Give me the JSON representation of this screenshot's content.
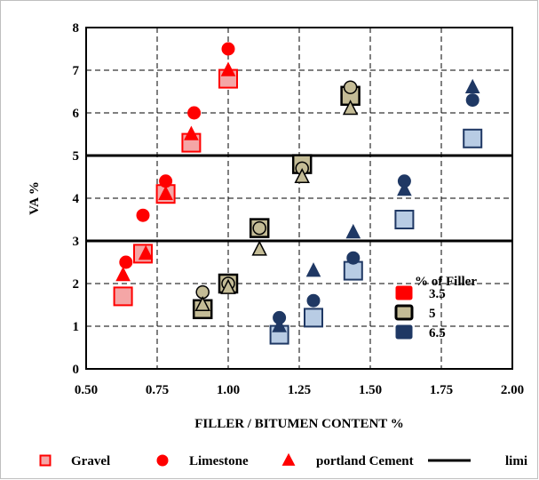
{
  "chart_data": {
    "type": "scatter",
    "xlabel": "FILLER / BITUMEN CONTENT %",
    "ylabel": "VA %",
    "xlim": [
      0.5,
      2.0
    ],
    "ylim": [
      0,
      8
    ],
    "x_ticks": [
      "0.50",
      "0.75",
      "1.00",
      "1.25",
      "1.50",
      "1.75",
      "2.00"
    ],
    "y_ticks": [
      "0",
      "1",
      "2",
      "3",
      "4",
      "5",
      "6",
      "7",
      "8"
    ],
    "grid": "dashed",
    "limits": [
      3,
      5
    ],
    "filler_colors": {
      "3.5": "#ff0000",
      "5": "#c4bc96",
      "6.5": "#1f3864"
    },
    "series": [
      {
        "name": "Gravel",
        "marker": "square",
        "points": [
          {
            "x": 0.63,
            "y": 1.7,
            "filler": "3.5"
          },
          {
            "x": 0.7,
            "y": 2.7,
            "filler": "3.5"
          },
          {
            "x": 0.78,
            "y": 4.1,
            "filler": "3.5"
          },
          {
            "x": 0.87,
            "y": 5.3,
            "filler": "3.5"
          },
          {
            "x": 1.0,
            "y": 6.8,
            "filler": "3.5"
          },
          {
            "x": 0.91,
            "y": 1.4,
            "filler": "5"
          },
          {
            "x": 1.0,
            "y": 2.0,
            "filler": "5"
          },
          {
            "x": 1.11,
            "y": 3.3,
            "filler": "5"
          },
          {
            "x": 1.26,
            "y": 4.8,
            "filler": "5"
          },
          {
            "x": 1.43,
            "y": 6.4,
            "filler": "5"
          },
          {
            "x": 1.18,
            "y": 0.8,
            "filler": "6.5"
          },
          {
            "x": 1.3,
            "y": 1.2,
            "filler": "6.5"
          },
          {
            "x": 1.44,
            "y": 2.3,
            "filler": "6.5"
          },
          {
            "x": 1.62,
            "y": 3.5,
            "filler": "6.5"
          },
          {
            "x": 1.86,
            "y": 5.4,
            "filler": "6.5"
          }
        ]
      },
      {
        "name": "Limestone",
        "marker": "circle",
        "points": [
          {
            "x": 0.64,
            "y": 2.5,
            "filler": "3.5"
          },
          {
            "x": 0.7,
            "y": 3.6,
            "filler": "3.5"
          },
          {
            "x": 0.78,
            "y": 4.4,
            "filler": "3.5"
          },
          {
            "x": 0.88,
            "y": 6.0,
            "filler": "3.5"
          },
          {
            "x": 1.0,
            "y": 7.5,
            "filler": "3.5"
          },
          {
            "x": 0.91,
            "y": 1.8,
            "filler": "5"
          },
          {
            "x": 1.0,
            "y": 2.0,
            "filler": "5"
          },
          {
            "x": 1.11,
            "y": 3.3,
            "filler": "5"
          },
          {
            "x": 1.26,
            "y": 4.7,
            "filler": "5"
          },
          {
            "x": 1.43,
            "y": 6.6,
            "filler": "5"
          },
          {
            "x": 1.18,
            "y": 1.2,
            "filler": "6.5"
          },
          {
            "x": 1.3,
            "y": 1.6,
            "filler": "6.5"
          },
          {
            "x": 1.44,
            "y": 2.6,
            "filler": "6.5"
          },
          {
            "x": 1.62,
            "y": 4.4,
            "filler": "6.5"
          },
          {
            "x": 1.86,
            "y": 6.3,
            "filler": "6.5"
          }
        ]
      },
      {
        "name": "portland Cement",
        "marker": "triangle",
        "points": [
          {
            "x": 0.63,
            "y": 2.2,
            "filler": "3.5"
          },
          {
            "x": 0.71,
            "y": 2.7,
            "filler": "3.5"
          },
          {
            "x": 0.78,
            "y": 4.1,
            "filler": "3.5"
          },
          {
            "x": 0.87,
            "y": 5.5,
            "filler": "3.5"
          },
          {
            "x": 1.0,
            "y": 7.0,
            "filler": "3.5"
          },
          {
            "x": 0.91,
            "y": 1.5,
            "filler": "5"
          },
          {
            "x": 1.0,
            "y": 1.9,
            "filler": "5"
          },
          {
            "x": 1.11,
            "y": 2.8,
            "filler": "5"
          },
          {
            "x": 1.26,
            "y": 4.5,
            "filler": "5"
          },
          {
            "x": 1.43,
            "y": 6.1,
            "filler": "5"
          },
          {
            "x": 1.18,
            "y": 1.0,
            "filler": "6.5"
          },
          {
            "x": 1.3,
            "y": 2.3,
            "filler": "6.5"
          },
          {
            "x": 1.44,
            "y": 3.2,
            "filler": "6.5"
          },
          {
            "x": 1.62,
            "y": 4.2,
            "filler": "6.5"
          },
          {
            "x": 1.86,
            "y": 6.6,
            "filler": "6.5"
          }
        ]
      }
    ],
    "inner_legend": {
      "title": "% of Filler",
      "position": "lower-right",
      "entries": [
        {
          "label": "3.5",
          "color": "#ff0000"
        },
        {
          "label": "5",
          "color": "#c4bc96"
        },
        {
          "label": "6.5",
          "color": "#1f3864"
        }
      ]
    },
    "bottom_legend": {
      "position": "bottom",
      "entries": [
        {
          "label": "Gravel",
          "marker": "square",
          "color": "#ff0000"
        },
        {
          "label": "Limestone",
          "marker": "circle",
          "color": "#ff0000"
        },
        {
          "label": "portland Cement",
          "marker": "triangle",
          "color": "#ff0000"
        },
        {
          "label": "limi",
          "marker": "line",
          "color": "#000000"
        }
      ]
    }
  }
}
